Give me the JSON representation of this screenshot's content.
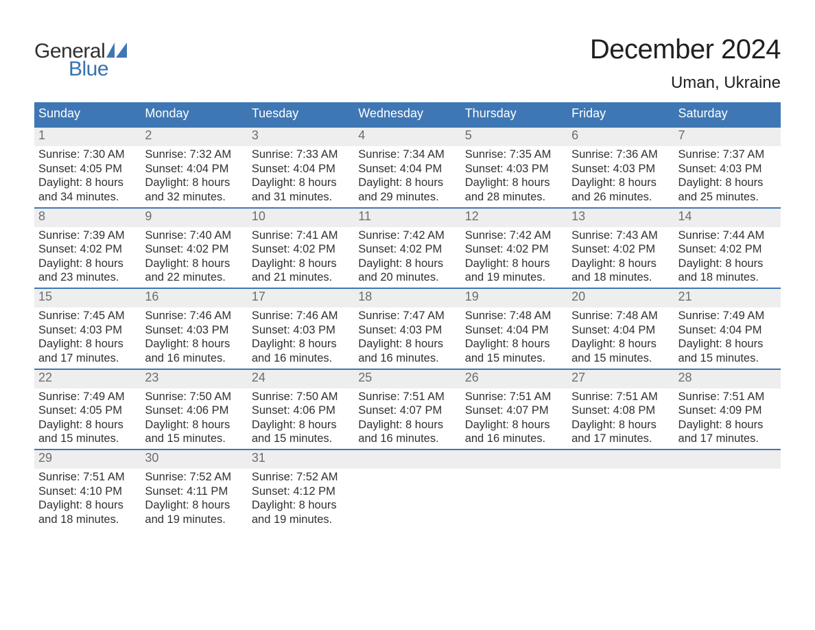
{
  "logo": {
    "word1": "General",
    "word2": "Blue",
    "word1_color": "#303030",
    "word2_color": "#3572b0",
    "sail_color": "#3f77b4"
  },
  "title": "December 2024",
  "location": "Uman, Ukraine",
  "colors": {
    "header_bg": "#3f77b4",
    "header_text": "#ffffff",
    "week_border": "#3f77b4",
    "daynum_bg": "#eeeeee",
    "daynum_text": "#6d6d6d",
    "body_text": "#303030",
    "page_bg": "#ffffff"
  },
  "typography": {
    "title_fontsize": 40,
    "location_fontsize": 24,
    "dow_fontsize": 18,
    "daynum_fontsize": 18,
    "body_fontsize": 16.5,
    "logo_fontsize": 30
  },
  "dow": [
    "Sunday",
    "Monday",
    "Tuesday",
    "Wednesday",
    "Thursday",
    "Friday",
    "Saturday"
  ],
  "weeks": [
    [
      {
        "n": "1",
        "sunrise": "7:30 AM",
        "sunset": "4:05 PM",
        "daylight_a": "Daylight: 8 hours",
        "daylight_b": "and 34 minutes."
      },
      {
        "n": "2",
        "sunrise": "7:32 AM",
        "sunset": "4:04 PM",
        "daylight_a": "Daylight: 8 hours",
        "daylight_b": "and 32 minutes."
      },
      {
        "n": "3",
        "sunrise": "7:33 AM",
        "sunset": "4:04 PM",
        "daylight_a": "Daylight: 8 hours",
        "daylight_b": "and 31 minutes."
      },
      {
        "n": "4",
        "sunrise": "7:34 AM",
        "sunset": "4:04 PM",
        "daylight_a": "Daylight: 8 hours",
        "daylight_b": "and 29 minutes."
      },
      {
        "n": "5",
        "sunrise": "7:35 AM",
        "sunset": "4:03 PM",
        "daylight_a": "Daylight: 8 hours",
        "daylight_b": "and 28 minutes."
      },
      {
        "n": "6",
        "sunrise": "7:36 AM",
        "sunset": "4:03 PM",
        "daylight_a": "Daylight: 8 hours",
        "daylight_b": "and 26 minutes."
      },
      {
        "n": "7",
        "sunrise": "7:37 AM",
        "sunset": "4:03 PM",
        "daylight_a": "Daylight: 8 hours",
        "daylight_b": "and 25 minutes."
      }
    ],
    [
      {
        "n": "8",
        "sunrise": "7:39 AM",
        "sunset": "4:02 PM",
        "daylight_a": "Daylight: 8 hours",
        "daylight_b": "and 23 minutes."
      },
      {
        "n": "9",
        "sunrise": "7:40 AM",
        "sunset": "4:02 PM",
        "daylight_a": "Daylight: 8 hours",
        "daylight_b": "and 22 minutes."
      },
      {
        "n": "10",
        "sunrise": "7:41 AM",
        "sunset": "4:02 PM",
        "daylight_a": "Daylight: 8 hours",
        "daylight_b": "and 21 minutes."
      },
      {
        "n": "11",
        "sunrise": "7:42 AM",
        "sunset": "4:02 PM",
        "daylight_a": "Daylight: 8 hours",
        "daylight_b": "and 20 minutes."
      },
      {
        "n": "12",
        "sunrise": "7:42 AM",
        "sunset": "4:02 PM",
        "daylight_a": "Daylight: 8 hours",
        "daylight_b": "and 19 minutes."
      },
      {
        "n": "13",
        "sunrise": "7:43 AM",
        "sunset": "4:02 PM",
        "daylight_a": "Daylight: 8 hours",
        "daylight_b": "and 18 minutes."
      },
      {
        "n": "14",
        "sunrise": "7:44 AM",
        "sunset": "4:02 PM",
        "daylight_a": "Daylight: 8 hours",
        "daylight_b": "and 18 minutes."
      }
    ],
    [
      {
        "n": "15",
        "sunrise": "7:45 AM",
        "sunset": "4:03 PM",
        "daylight_a": "Daylight: 8 hours",
        "daylight_b": "and 17 minutes."
      },
      {
        "n": "16",
        "sunrise": "7:46 AM",
        "sunset": "4:03 PM",
        "daylight_a": "Daylight: 8 hours",
        "daylight_b": "and 16 minutes."
      },
      {
        "n": "17",
        "sunrise": "7:46 AM",
        "sunset": "4:03 PM",
        "daylight_a": "Daylight: 8 hours",
        "daylight_b": "and 16 minutes."
      },
      {
        "n": "18",
        "sunrise": "7:47 AM",
        "sunset": "4:03 PM",
        "daylight_a": "Daylight: 8 hours",
        "daylight_b": "and 16 minutes."
      },
      {
        "n": "19",
        "sunrise": "7:48 AM",
        "sunset": "4:04 PM",
        "daylight_a": "Daylight: 8 hours",
        "daylight_b": "and 15 minutes."
      },
      {
        "n": "20",
        "sunrise": "7:48 AM",
        "sunset": "4:04 PM",
        "daylight_a": "Daylight: 8 hours",
        "daylight_b": "and 15 minutes."
      },
      {
        "n": "21",
        "sunrise": "7:49 AM",
        "sunset": "4:04 PM",
        "daylight_a": "Daylight: 8 hours",
        "daylight_b": "and 15 minutes."
      }
    ],
    [
      {
        "n": "22",
        "sunrise": "7:49 AM",
        "sunset": "4:05 PM",
        "daylight_a": "Daylight: 8 hours",
        "daylight_b": "and 15 minutes."
      },
      {
        "n": "23",
        "sunrise": "7:50 AM",
        "sunset": "4:06 PM",
        "daylight_a": "Daylight: 8 hours",
        "daylight_b": "and 15 minutes."
      },
      {
        "n": "24",
        "sunrise": "7:50 AM",
        "sunset": "4:06 PM",
        "daylight_a": "Daylight: 8 hours",
        "daylight_b": "and 15 minutes."
      },
      {
        "n": "25",
        "sunrise": "7:51 AM",
        "sunset": "4:07 PM",
        "daylight_a": "Daylight: 8 hours",
        "daylight_b": "and 16 minutes."
      },
      {
        "n": "26",
        "sunrise": "7:51 AM",
        "sunset": "4:07 PM",
        "daylight_a": "Daylight: 8 hours",
        "daylight_b": "and 16 minutes."
      },
      {
        "n": "27",
        "sunrise": "7:51 AM",
        "sunset": "4:08 PM",
        "daylight_a": "Daylight: 8 hours",
        "daylight_b": "and 17 minutes."
      },
      {
        "n": "28",
        "sunrise": "7:51 AM",
        "sunset": "4:09 PM",
        "daylight_a": "Daylight: 8 hours",
        "daylight_b": "and 17 minutes."
      }
    ],
    [
      {
        "n": "29",
        "sunrise": "7:51 AM",
        "sunset": "4:10 PM",
        "daylight_a": "Daylight: 8 hours",
        "daylight_b": "and 18 minutes."
      },
      {
        "n": "30",
        "sunrise": "7:52 AM",
        "sunset": "4:11 PM",
        "daylight_a": "Daylight: 8 hours",
        "daylight_b": "and 19 minutes."
      },
      {
        "n": "31",
        "sunrise": "7:52 AM",
        "sunset": "4:12 PM",
        "daylight_a": "Daylight: 8 hours",
        "daylight_b": "and 19 minutes."
      },
      null,
      null,
      null,
      null
    ]
  ],
  "labels": {
    "sunrise_prefix": "Sunrise: ",
    "sunset_prefix": "Sunset: "
  }
}
